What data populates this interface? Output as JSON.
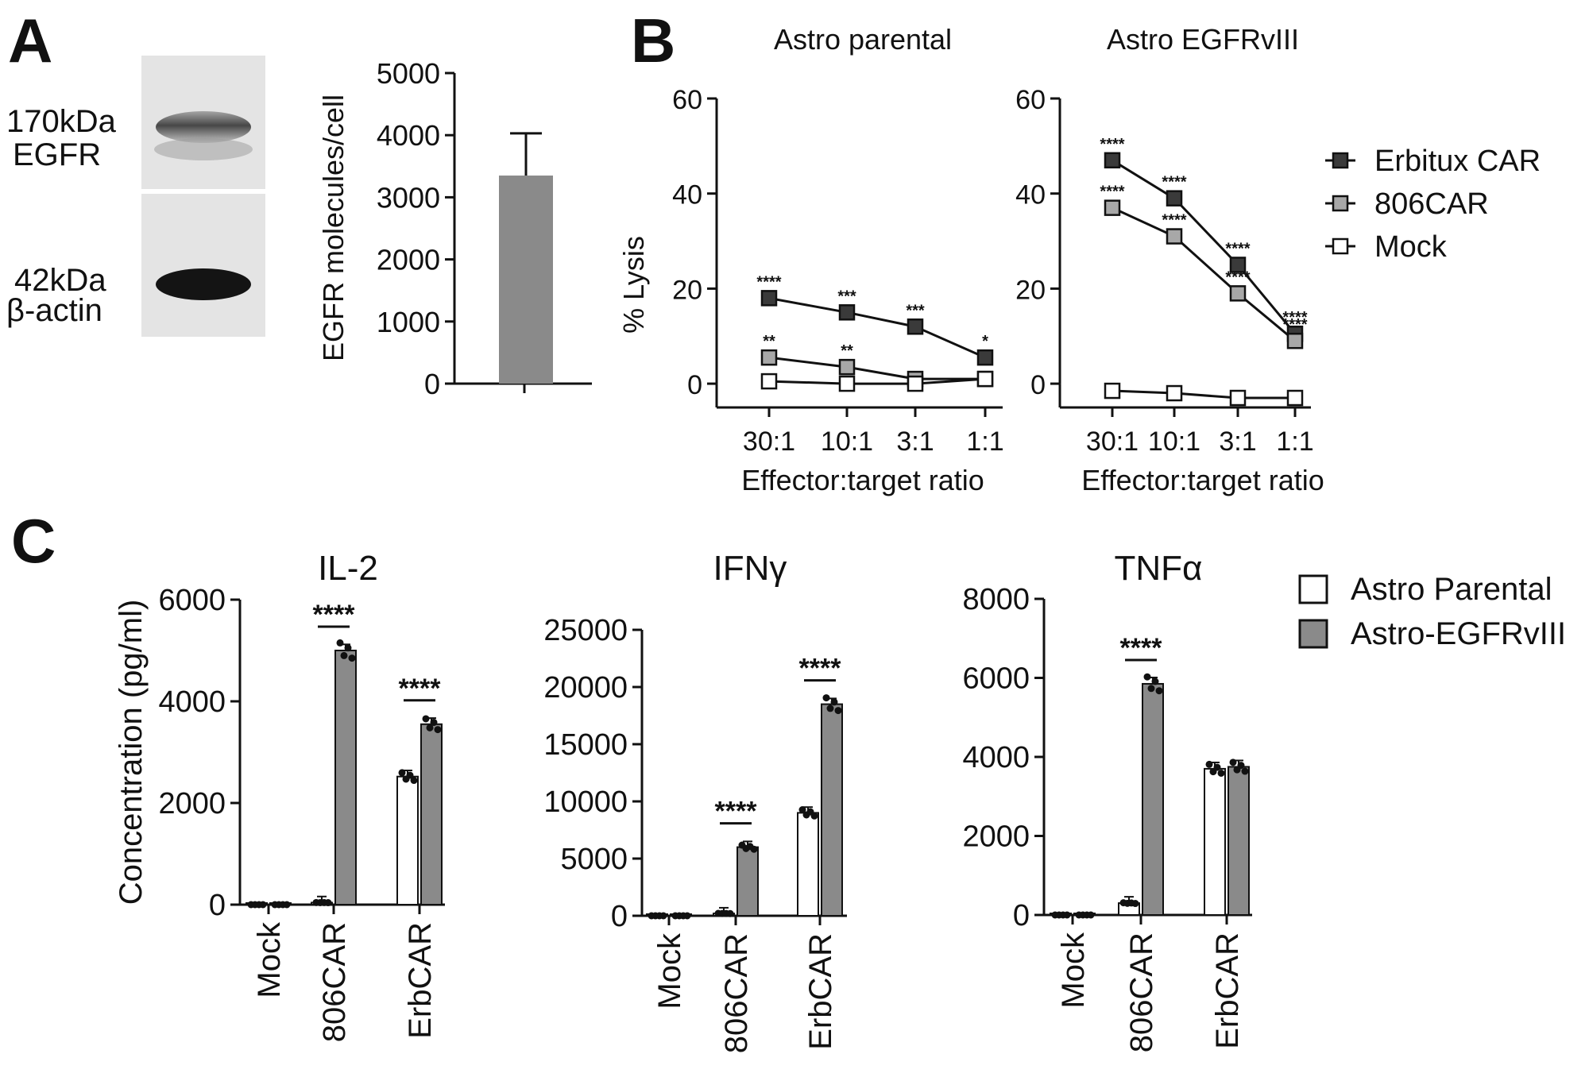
{
  "panels": {
    "a": "A",
    "b": "B",
    "c": "C"
  },
  "blot": {
    "top_kda": "170kDa",
    "top_protein": "EGFR",
    "bottom_kda": "42kDa",
    "bottom_protein": "β-actin"
  },
  "chart_data": [
    {
      "id": "egfr_bar",
      "type": "bar",
      "categories": [
        ""
      ],
      "values": [
        3350
      ],
      "error": [
        680
      ],
      "ylabel": "EGFR molecules/cell",
      "ylim": [
        0,
        5000
      ],
      "yticks": [
        0,
        1000,
        2000,
        3000,
        4000,
        5000
      ],
      "color": "#8a8a8a"
    },
    {
      "id": "lysis_parental",
      "type": "line",
      "title": "Astro parental",
      "xlabel": "Effector:target ratio",
      "ylabel": "% Lysis",
      "categories": [
        "30:1",
        "10:1",
        "3:1",
        "1:1"
      ],
      "ylim": [
        -5,
        60
      ],
      "yticks": [
        0,
        20,
        40,
        60
      ],
      "series": [
        {
          "name": "Erbitux CAR",
          "values": [
            18,
            15,
            12,
            5.5
          ],
          "color": "#3a3a3a",
          "sig": [
            "****",
            "***",
            "***",
            "*"
          ]
        },
        {
          "name": "806CAR",
          "values": [
            5.5,
            3.5,
            1,
            1
          ],
          "color": "#a8a8a8",
          "sig": [
            "**",
            "**",
            "",
            ""
          ]
        },
        {
          "name": "Mock",
          "values": [
            0.5,
            0,
            0,
            1
          ],
          "color": "#ffffff",
          "sig": [
            "",
            "",
            "",
            ""
          ]
        }
      ]
    },
    {
      "id": "lysis_egfrviii",
      "type": "line",
      "title": "Astro EGFRvIII",
      "xlabel": "Effector:target ratio",
      "categories": [
        "30:1",
        "10:1",
        "3:1",
        "1:1"
      ],
      "ylim": [
        -5,
        60
      ],
      "yticks": [
        0,
        20,
        40,
        60
      ],
      "legend": "right",
      "series": [
        {
          "name": "Erbitux CAR",
          "values": [
            47,
            39,
            25,
            10.5
          ],
          "color": "#3a3a3a",
          "sig": [
            "****",
            "****",
            "****",
            "****"
          ]
        },
        {
          "name": "806CAR",
          "values": [
            37,
            31,
            19,
            9
          ],
          "color": "#a8a8a8",
          "sig": [
            "****",
            "****",
            "****",
            "****"
          ]
        },
        {
          "name": "Mock",
          "values": [
            -1.5,
            -2,
            -3,
            -3
          ],
          "color": "#ffffff",
          "sig": [
            "",
            "",
            "",
            ""
          ]
        }
      ]
    },
    {
      "id": "il2",
      "type": "bar",
      "title": "IL-2",
      "ylabel": "Concentration (pg/ml)",
      "categories": [
        "Mock",
        "806CAR",
        "ErbCAR"
      ],
      "ylim": [
        0,
        6000
      ],
      "yticks": [
        0,
        2000,
        4000,
        6000
      ],
      "series": [
        {
          "name": "Astro Parental",
          "values": [
            0,
            40,
            2520
          ],
          "color": "#ffffff"
        },
        {
          "name": "Astro-EGFRvIII",
          "values": [
            0,
            5000,
            3550
          ],
          "color": "#8a8a8a"
        }
      ],
      "sig": [
        "",
        "****",
        "****"
      ]
    },
    {
      "id": "ifng",
      "type": "bar",
      "title": "IFNγ",
      "categories": [
        "Mock",
        "806CAR",
        "ErbCAR"
      ],
      "ylim": [
        0,
        25000
      ],
      "yticks": [
        0,
        5000,
        10000,
        15000,
        20000,
        25000
      ],
      "series": [
        {
          "name": "Astro Parental",
          "values": [
            0,
            200,
            9000
          ],
          "color": "#ffffff"
        },
        {
          "name": "Astro-EGFRvIII",
          "values": [
            0,
            6000,
            18500
          ],
          "color": "#8a8a8a"
        }
      ],
      "sig": [
        "",
        "****",
        "****"
      ]
    },
    {
      "id": "tnfa",
      "type": "bar",
      "title": "TNFα",
      "categories": [
        "Mock",
        "806CAR",
        "ErbCAR"
      ],
      "ylim": [
        0,
        8000
      ],
      "yticks": [
        0,
        2000,
        4000,
        6000,
        8000
      ],
      "legend": "top-right",
      "series": [
        {
          "name": "Astro Parental",
          "values": [
            0,
            300,
            3700
          ],
          "color": "#ffffff"
        },
        {
          "name": "Astro-EGFRvIII",
          "values": [
            0,
            5850,
            3750
          ],
          "color": "#8a8a8a"
        }
      ],
      "sig": [
        "",
        "****",
        ""
      ]
    }
  ]
}
